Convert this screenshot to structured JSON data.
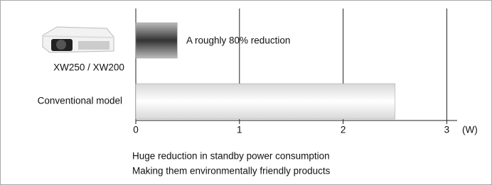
{
  "chart_data": {
    "type": "hbar",
    "categories": [
      "XW250 / XW200",
      "Conventional model"
    ],
    "values": [
      0.4,
      2.5
    ],
    "colors": [
      "#333333",
      "#d8d8d8"
    ],
    "xlim": [
      0,
      3.1
    ],
    "xticks": [
      0,
      1,
      2,
      3
    ],
    "x_label": "(W)",
    "grid": true,
    "annotation": "A roughly 80% reduction",
    "notes": [
      "Huge reduction in standby power consumption",
      "Making them environmentally friendly products"
    ]
  }
}
